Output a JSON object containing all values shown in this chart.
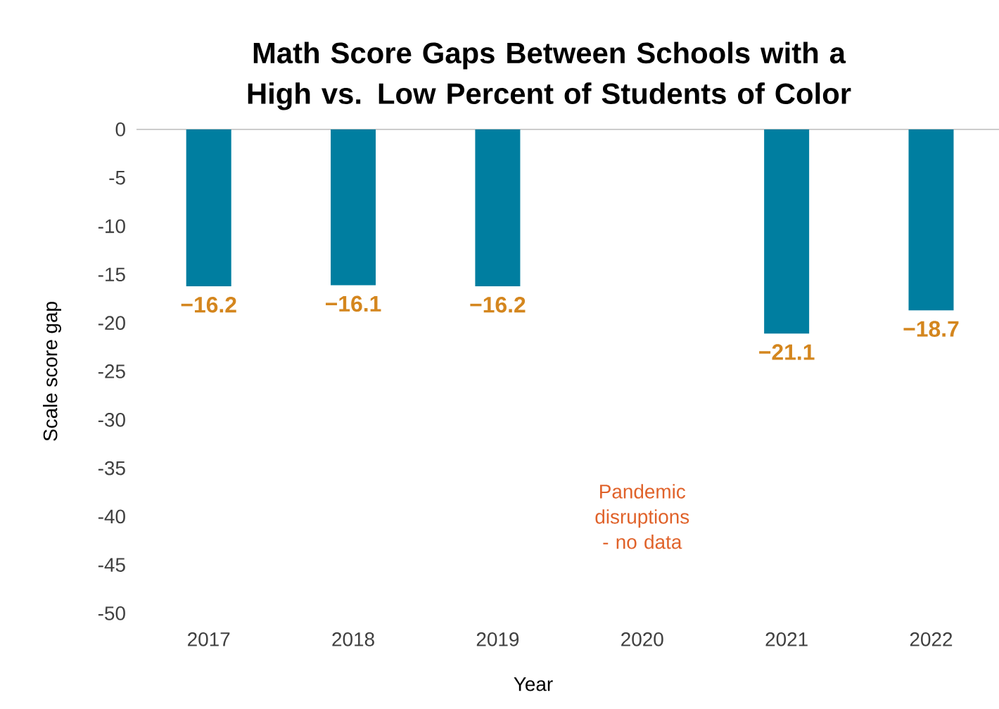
{
  "chart_data": {
    "type": "bar",
    "title": "Math Score Gaps Between Schools with a High vs. Low Percent of Students of Color",
    "xlabel": "Year",
    "ylabel": "Scale score gap",
    "categories": [
      "2017",
      "2018",
      "2019",
      "2020",
      "2021",
      "2022"
    ],
    "values": [
      -16.2,
      -16.1,
      -16.2,
      null,
      -21.1,
      -18.7
    ],
    "color": "#007ea0",
    "ylim": [
      -50,
      0
    ],
    "yticks": [
      -50,
      -45,
      -40,
      -35,
      -30,
      -25,
      -20,
      -15,
      -10,
      -5,
      0
    ],
    "data_labels": true,
    "annotations": [
      "Pandemic disruptions - no data"
    ]
  }
}
